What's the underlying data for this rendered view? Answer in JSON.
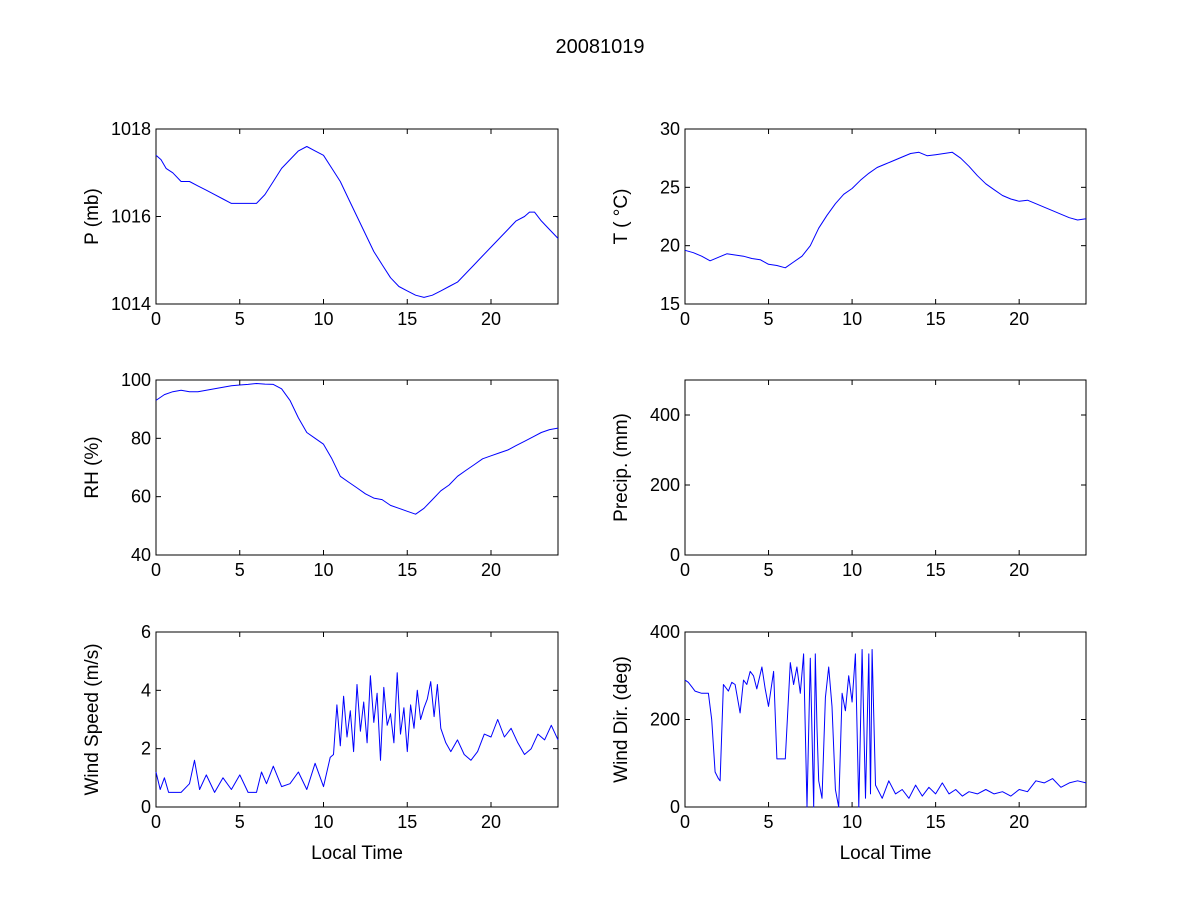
{
  "figure": {
    "title": "20081019"
  },
  "chart_data": [
    {
      "type": "line",
      "id": "pressure",
      "ylabel": "P (mb)",
      "xlabel": "",
      "xlim": [
        0,
        24
      ],
      "ylim": [
        1014,
        1018
      ],
      "xticks": [
        0,
        5,
        10,
        15,
        20
      ],
      "yticks": [
        1014,
        1016,
        1018
      ],
      "color": "#0000ff",
      "series": [
        {
          "x": [
            0,
            0.3,
            0.6,
            1.0,
            1.5,
            2.0,
            2.5,
            3.0,
            3.5,
            4.0,
            4.5,
            5.0,
            5.5,
            6.0,
            6.5,
            7.0,
            7.5,
            8.0,
            8.5,
            9.0,
            9.5,
            10.0,
            10.5,
            11.0,
            11.5,
            12.0,
            12.5,
            13.0,
            13.5,
            14.0,
            14.5,
            15.0,
            15.5,
            16.0,
            16.5,
            17.0,
            17.5,
            18.0,
            18.5,
            19.0,
            19.5,
            20.0,
            20.5,
            21.0,
            21.5,
            22.0,
            22.3,
            22.6,
            23.0,
            23.5,
            24.0
          ],
          "values": [
            1017.4,
            1017.3,
            1017.1,
            1017.0,
            1016.8,
            1016.8,
            1016.7,
            1016.6,
            1016.5,
            1016.4,
            1016.3,
            1016.3,
            1016.3,
            1016.3,
            1016.5,
            1016.8,
            1017.1,
            1017.3,
            1017.5,
            1017.6,
            1017.5,
            1017.4,
            1017.1,
            1016.8,
            1016.4,
            1016.0,
            1015.6,
            1015.2,
            1014.9,
            1014.6,
            1014.4,
            1014.3,
            1014.2,
            1014.15,
            1014.2,
            1014.3,
            1014.4,
            1014.5,
            1014.7,
            1014.9,
            1015.1,
            1015.3,
            1015.5,
            1015.7,
            1015.9,
            1016.0,
            1016.1,
            1016.1,
            1015.9,
            1015.7,
            1015.5
          ]
        }
      ]
    },
    {
      "type": "line",
      "id": "temperature",
      "ylabel": "T ( °C)",
      "xlabel": "",
      "xlim": [
        0,
        24
      ],
      "ylim": [
        15,
        30
      ],
      "xticks": [
        0,
        5,
        10,
        15,
        20
      ],
      "yticks": [
        15,
        20,
        25,
        30
      ],
      "color": "#0000ff",
      "series": [
        {
          "x": [
            0,
            0.5,
            1.0,
            1.5,
            2.0,
            2.5,
            3.0,
            3.5,
            4.0,
            4.5,
            5.0,
            5.5,
            6.0,
            6.5,
            7.0,
            7.5,
            8.0,
            8.5,
            9.0,
            9.5,
            10.0,
            10.5,
            11.0,
            11.5,
            12.0,
            12.5,
            13.0,
            13.5,
            14.0,
            14.5,
            15.0,
            15.5,
            16.0,
            16.5,
            17.0,
            17.5,
            18.0,
            18.5,
            19.0,
            19.5,
            20.0,
            20.5,
            21.0,
            21.5,
            22.0,
            22.5,
            23.0,
            23.5,
            24.0
          ],
          "values": [
            19.6,
            19.4,
            19.1,
            18.7,
            19.0,
            19.3,
            19.2,
            19.1,
            18.9,
            18.8,
            18.4,
            18.3,
            18.1,
            18.6,
            19.1,
            20.0,
            21.5,
            22.6,
            23.6,
            24.4,
            24.9,
            25.6,
            26.2,
            26.7,
            27.0,
            27.3,
            27.6,
            27.9,
            28.0,
            27.7,
            27.8,
            27.9,
            28.0,
            27.5,
            26.8,
            26.0,
            25.3,
            24.8,
            24.3,
            24.0,
            23.8,
            23.9,
            23.6,
            23.3,
            23.0,
            22.7,
            22.4,
            22.2,
            22.3
          ]
        }
      ]
    },
    {
      "type": "line",
      "id": "relative-humidity",
      "ylabel": "RH (%)",
      "xlabel": "",
      "xlim": [
        0,
        24
      ],
      "ylim": [
        40,
        100
      ],
      "xticks": [
        0,
        5,
        10,
        15,
        20
      ],
      "yticks": [
        40,
        60,
        80,
        100
      ],
      "color": "#0000ff",
      "series": [
        {
          "x": [
            0,
            0.5,
            1.0,
            1.5,
            2.0,
            2.5,
            3.0,
            3.5,
            4.0,
            4.5,
            5.0,
            5.5,
            6.0,
            6.5,
            7.0,
            7.5,
            8.0,
            8.5,
            9.0,
            9.5,
            10.0,
            10.5,
            11.0,
            11.5,
            12.0,
            12.5,
            13.0,
            13.5,
            14.0,
            14.5,
            15.0,
            15.5,
            16.0,
            16.5,
            17.0,
            17.5,
            18.0,
            18.5,
            19.0,
            19.5,
            20.0,
            20.5,
            21.0,
            21.5,
            22.0,
            22.5,
            23.0,
            23.5,
            24.0
          ],
          "values": [
            93,
            95,
            96,
            96.5,
            96,
            96,
            96.5,
            97,
            97.5,
            98,
            98.3,
            98.5,
            98.8,
            98.6,
            98.5,
            97,
            93,
            87,
            82,
            80,
            78,
            73,
            67,
            65,
            63,
            61,
            59.5,
            59,
            57,
            56,
            55,
            54,
            56,
            59,
            62,
            64,
            67,
            69,
            71,
            73,
            74,
            75,
            76,
            77.5,
            79,
            80.5,
            82,
            83,
            83.5
          ]
        }
      ]
    },
    {
      "type": "line",
      "id": "precipitation",
      "ylabel": "Precip. (mm)",
      "xlabel": "",
      "xlim": [
        0,
        24
      ],
      "ylim": [
        0,
        500
      ],
      "xticks": [
        0,
        5,
        10,
        15,
        20
      ],
      "yticks": [
        0,
        200,
        400
      ],
      "color": "#0000ff",
      "series": [
        {
          "x": [],
          "values": []
        }
      ]
    },
    {
      "type": "line",
      "id": "wind-speed",
      "ylabel": "Wind Speed (m/s)",
      "xlabel": "Local Time",
      "xlim": [
        0,
        24
      ],
      "ylim": [
        0,
        6
      ],
      "xticks": [
        0,
        5,
        10,
        15,
        20
      ],
      "yticks": [
        0,
        2,
        4,
        6
      ],
      "color": "#0000ff",
      "series": [
        {
          "x": [
            0,
            0.25,
            0.5,
            0.75,
            1.0,
            1.5,
            2.0,
            2.3,
            2.6,
            3.0,
            3.5,
            4.0,
            4.5,
            5.0,
            5.5,
            6.0,
            6.3,
            6.6,
            7.0,
            7.5,
            8.0,
            8.5,
            9.0,
            9.5,
            10.0,
            10.4,
            10.6,
            10.8,
            11.0,
            11.2,
            11.4,
            11.6,
            11.8,
            12.0,
            12.2,
            12.4,
            12.6,
            12.8,
            13.0,
            13.2,
            13.4,
            13.6,
            13.8,
            14.0,
            14.2,
            14.4,
            14.6,
            14.8,
            15.0,
            15.2,
            15.4,
            15.6,
            15.8,
            16.0,
            16.2,
            16.4,
            16.6,
            16.8,
            17.0,
            17.3,
            17.6,
            18.0,
            18.4,
            18.8,
            19.2,
            19.6,
            20.0,
            20.4,
            20.8,
            21.2,
            21.6,
            22.0,
            22.4,
            22.8,
            23.2,
            23.6,
            24.0
          ],
          "values": [
            1.2,
            0.6,
            1.0,
            0.5,
            0.5,
            0.5,
            0.8,
            1.6,
            0.6,
            1.1,
            0.5,
            1.0,
            0.6,
            1.1,
            0.5,
            0.5,
            1.2,
            0.8,
            1.4,
            0.7,
            0.8,
            1.2,
            0.6,
            1.5,
            0.7,
            1.7,
            1.8,
            3.5,
            2.1,
            3.8,
            2.4,
            3.3,
            1.9,
            4.2,
            2.6,
            3.6,
            2.2,
            4.5,
            2.9,
            3.9,
            1.6,
            4.1,
            2.8,
            3.2,
            2.2,
            4.6,
            2.5,
            3.4,
            1.9,
            3.5,
            2.7,
            4.0,
            3.0,
            3.4,
            3.7,
            4.3,
            3.1,
            4.2,
            2.7,
            2.2,
            1.9,
            2.3,
            1.8,
            1.6,
            1.9,
            2.5,
            2.4,
            3.0,
            2.4,
            2.7,
            2.2,
            1.8,
            2.0,
            2.5,
            2.3,
            2.8,
            2.3
          ]
        }
      ]
    },
    {
      "type": "line",
      "id": "wind-direction",
      "ylabel": "Wind Dir. (deg)",
      "xlabel": "Local Time",
      "xlim": [
        0,
        24
      ],
      "ylim": [
        0,
        400
      ],
      "xticks": [
        0,
        5,
        10,
        15,
        20
      ],
      "yticks": [
        0,
        200,
        400
      ],
      "color": "#0000ff",
      "series": [
        {
          "x": [
            0,
            0.2,
            0.4,
            0.6,
            1.0,
            1.4,
            1.6,
            1.8,
            2.0,
            2.1,
            2.3,
            2.6,
            2.8,
            3.0,
            3.3,
            3.5,
            3.7,
            3.9,
            4.1,
            4.3,
            4.6,
            4.8,
            5.0,
            5.3,
            5.5,
            5.7,
            6.0,
            6.3,
            6.5,
            6.7,
            6.9,
            7.1,
            7.3,
            7.5,
            7.7,
            7.8,
            7.9,
            8.0,
            8.2,
            8.4,
            8.6,
            8.8,
            9.0,
            9.2,
            9.4,
            9.6,
            9.8,
            10.0,
            10.2,
            10.4,
            10.6,
            10.8,
            11.0,
            11.1,
            11.2,
            11.4,
            11.8,
            12.2,
            12.6,
            13.0,
            13.4,
            13.8,
            14.2,
            14.6,
            15.0,
            15.4,
            15.8,
            16.2,
            16.6,
            17.0,
            17.5,
            18.0,
            18.5,
            19.0,
            19.5,
            20.0,
            20.5,
            21.0,
            21.5,
            22.0,
            22.5,
            23.0,
            23.5,
            24.0
          ],
          "values": [
            290,
            285,
            275,
            265,
            260,
            260,
            200,
            80,
            65,
            60,
            280,
            265,
            285,
            280,
            215,
            290,
            280,
            310,
            300,
            270,
            320,
            270,
            230,
            310,
            110,
            110,
            110,
            330,
            280,
            320,
            260,
            350,
            0,
            340,
            0,
            350,
            180,
            60,
            20,
            250,
            320,
            230,
            40,
            0,
            260,
            220,
            300,
            240,
            350,
            0,
            360,
            20,
            350,
            30,
            360,
            50,
            20,
            60,
            30,
            40,
            20,
            50,
            25,
            45,
            30,
            55,
            30,
            40,
            25,
            35,
            30,
            40,
            30,
            35,
            25,
            40,
            35,
            60,
            55,
            65,
            45,
            55,
            60,
            55
          ]
        }
      ]
    }
  ]
}
